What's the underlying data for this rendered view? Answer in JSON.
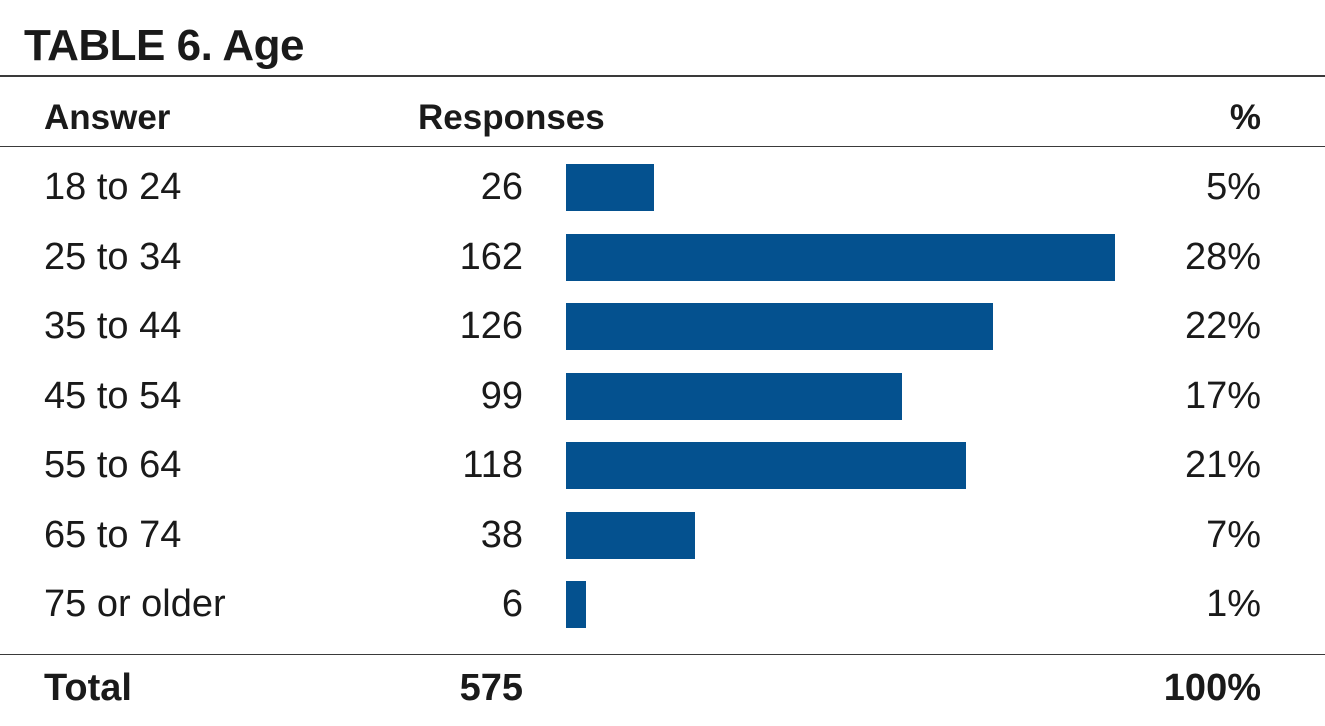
{
  "title": "TABLE 6. Age",
  "headers": {
    "answer": "Answer",
    "responses": "Responses",
    "percent": "%"
  },
  "bar_color": "#04518f",
  "chart_data": {
    "type": "bar",
    "title": "TABLE 6. Age",
    "orientation": "horizontal",
    "categories": [
      "18 to 24",
      "25 to 34",
      "35 to 44",
      "45 to 54",
      "55 to 64",
      "65 to 74",
      "75 or older"
    ],
    "values": [
      26,
      162,
      126,
      99,
      118,
      38,
      6
    ],
    "percent_labels": [
      "5%",
      "28%",
      "22%",
      "17%",
      "21%",
      "7%",
      "1%"
    ],
    "xlim": [
      0,
      162
    ]
  },
  "total": {
    "label": "Total",
    "responses": "575",
    "percent": "100%"
  }
}
